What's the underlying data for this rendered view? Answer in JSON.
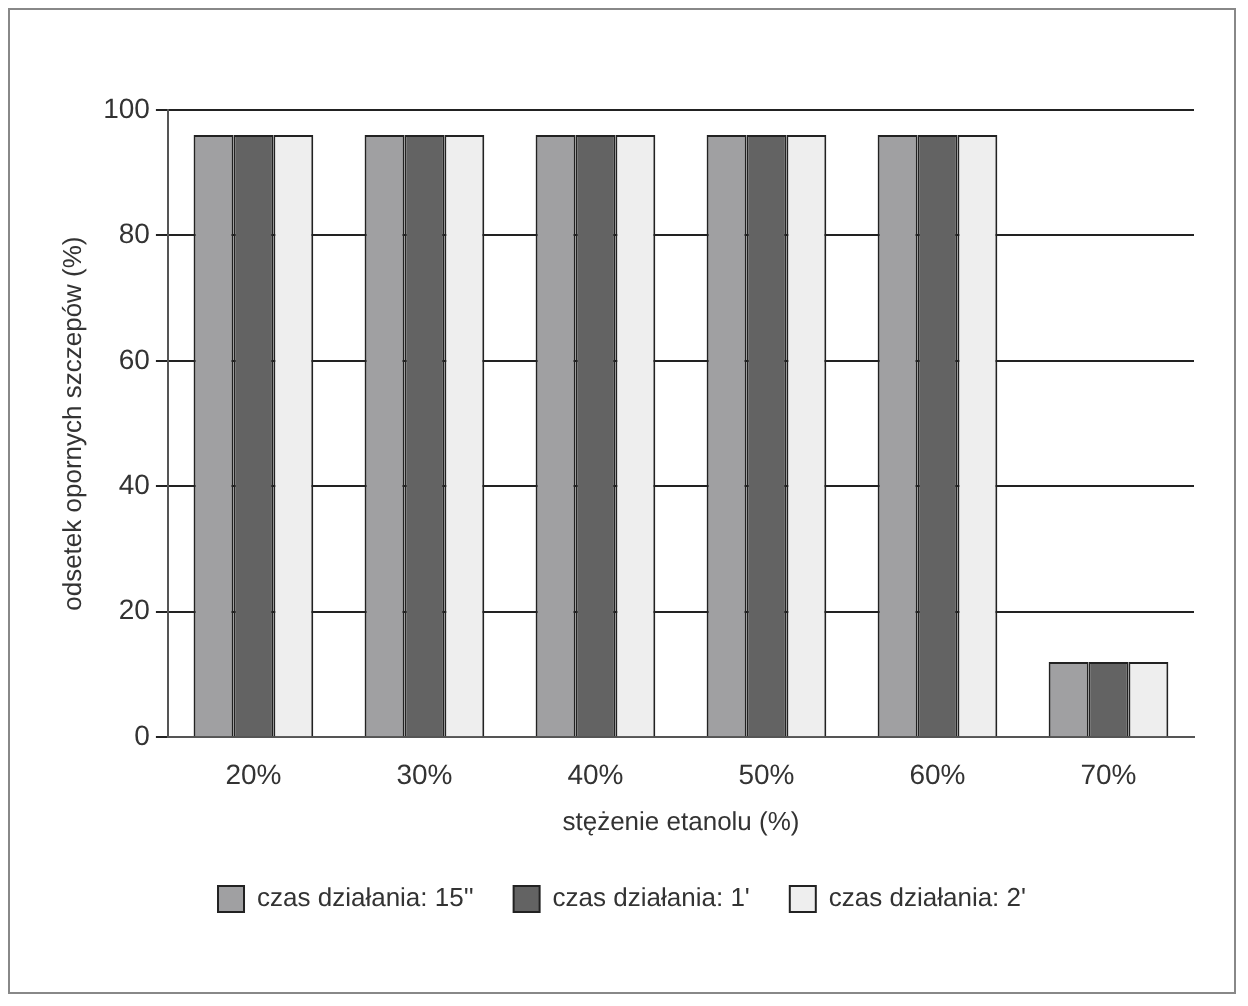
{
  "chart_data": {
    "type": "bar",
    "xlabel": "stężenie etanolu (%)",
    "ylabel": "odsetek opornych szczepów (%)",
    "categories": [
      "20%",
      "30%",
      "40%",
      "50%",
      "60%",
      "70%"
    ],
    "series": [
      {
        "name": "czas działania: 15''",
        "color": "#a0a0a2",
        "values": [
          96,
          96,
          96,
          96,
          96,
          12
        ]
      },
      {
        "name": "czas działania: 1'",
        "color": "#636363",
        "values": [
          96,
          96,
          96,
          96,
          96,
          12
        ]
      },
      {
        "name": "czas działania: 2'",
        "color": "#eeeeee",
        "values": [
          96,
          96,
          96,
          96,
          96,
          12
        ]
      }
    ],
    "ylim": [
      0,
      100
    ],
    "yticks": [
      0,
      20,
      40,
      60,
      80,
      100
    ],
    "grid": "y",
    "legend": "bottom"
  }
}
